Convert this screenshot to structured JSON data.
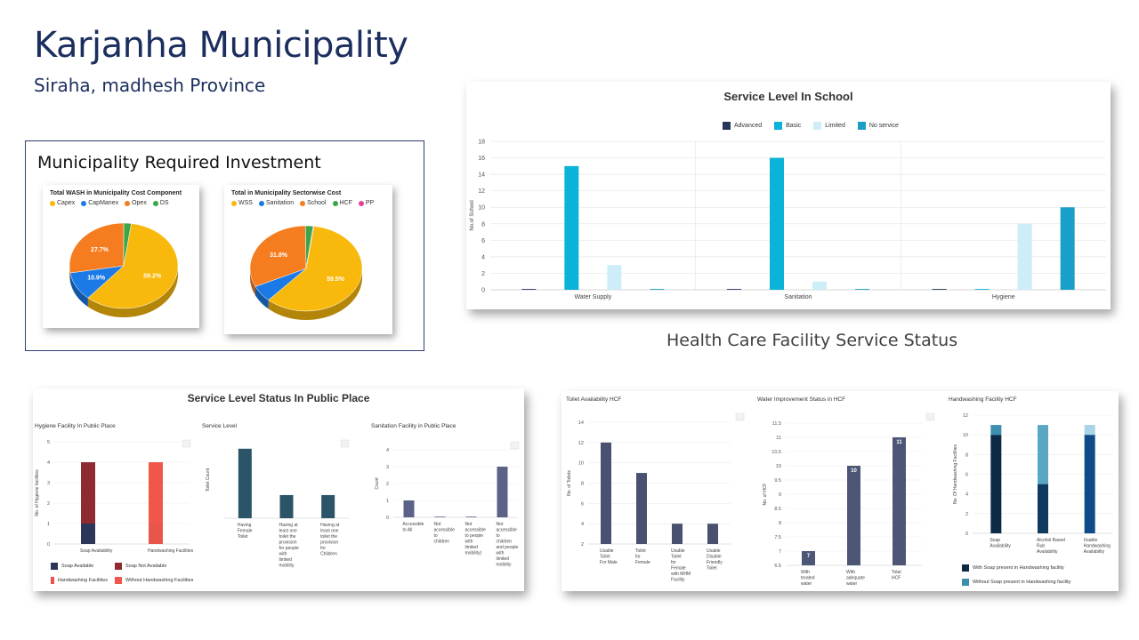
{
  "header": {
    "title": "Karjanha Municipality",
    "subtitle": "Siraha, madhesh Province"
  },
  "investment": {
    "heading": "Municipality Required Investment"
  },
  "hcf_heading": "Health Care Facility Service Status",
  "chart_data": [
    {
      "id": "pie-cost-component",
      "type": "pie",
      "title": "Total WASH in Municipality Cost Component",
      "labels": [
        "Capex",
        "CapManex",
        "Opex",
        "DS"
      ],
      "colors": [
        "#f8b90c",
        "#1b7ae6",
        "#f57c1f",
        "#3aa648"
      ],
      "values": [
        59.2,
        10.9,
        27.7,
        2.2
      ],
      "data_labels": [
        "59.2%",
        "10.9%",
        "27.7%",
        ""
      ]
    },
    {
      "id": "pie-sectorwise",
      "type": "pie",
      "title": "Total in Municipality Sectorwise Cost",
      "labels": [
        "WSS",
        "Sanitation",
        "School",
        "HCF",
        "PP"
      ],
      "colors": [
        "#f8b90c",
        "#1b7ae6",
        "#f57c1f",
        "#3aa648",
        "#e0449a"
      ],
      "values": [
        59.5,
        6.3,
        31.8,
        2.2,
        0.2
      ],
      "data_labels": [
        "59.5%",
        "",
        "31.8%",
        "",
        ""
      ]
    },
    {
      "id": "school-service",
      "type": "bar",
      "title": "Service Level In School",
      "categories": [
        "Water Supply",
        "Sanitation",
        "Hygiene"
      ],
      "series": [
        {
          "name": "Advanced",
          "color": "#263559",
          "values": [
            0,
            0,
            0
          ]
        },
        {
          "name": "Basic",
          "color": "#0bb3d9",
          "values": [
            15,
            16,
            0
          ]
        },
        {
          "name": "Limited",
          "color": "#cdeef8",
          "values": [
            3,
            1,
            8
          ]
        },
        {
          "name": "No service",
          "color": "#1aa0c8",
          "values": [
            0,
            0,
            10
          ]
        }
      ],
      "ylabel": "No.of School",
      "ylim": [
        0,
        18
      ],
      "yticks": [
        0,
        2,
        4,
        6,
        8,
        10,
        12,
        14,
        16,
        18
      ]
    },
    {
      "id": "pp-hygiene",
      "type": "bar",
      "group_title": "Service Level Status In Public Place",
      "title": "Hygiene Facility In Public Place",
      "categories": [
        "Soap Availability",
        "Handwashing Facilities"
      ],
      "series": [
        {
          "name": "Soap Available",
          "color": "#2d3559",
          "values": [
            1,
            0
          ]
        },
        {
          "name": "Soap Not Available",
          "color": "#8e2a30",
          "values": [
            3,
            0
          ]
        },
        {
          "name": "Handwashing Facilities",
          "color": "#e8554a",
          "values": [
            0,
            1
          ]
        },
        {
          "name": "Without Handwashing Facilities",
          "color": "#f0574a",
          "values": [
            0,
            3
          ]
        }
      ],
      "ylabel": "No. of Hygiene facilities",
      "ylim": [
        0,
        5
      ],
      "yticks": [
        0,
        1,
        2,
        3,
        4,
        5
      ]
    },
    {
      "id": "pp-service-level",
      "type": "bar",
      "title": "Service Level",
      "categories": [
        "Having Female Toilet",
        "Having at least one toilet the provision for people with limited mobility",
        "Having at least one toilet the provision for Children"
      ],
      "values": [
        3,
        1,
        1
      ],
      "color": "#2b5468",
      "ylabel": "Toilet Count"
    },
    {
      "id": "pp-sanitation",
      "type": "bar",
      "title": "Sanitation Facility in Public Place",
      "categories": [
        "Accessible to All",
        "Not accessible to children",
        "Not accessible to people with limited mobility)",
        "Not accessible to children and people with limited mobility"
      ],
      "values": [
        1,
        0,
        0,
        3
      ],
      "color": "#5a6287",
      "ylabel": "Count",
      "ylim": [
        0,
        4
      ],
      "yticks": [
        0,
        1,
        2,
        3,
        4
      ]
    },
    {
      "id": "hcf-toilet",
      "type": "bar",
      "title": "Toilet Availability HCF",
      "categories": [
        "Usable Toilet For Male",
        "Toilet for Female",
        "Usable Toilet for Female with MHM Facility",
        "Usable Disable Friendly Toilet"
      ],
      "values": [
        12,
        9,
        4,
        4
      ],
      "color": "#4a5170",
      "ylabel": "No. of Toilets",
      "ylim": [
        2,
        14
      ],
      "yticks": [
        2,
        4,
        6,
        8,
        10,
        12,
        14
      ]
    },
    {
      "id": "hcf-water",
      "type": "bar",
      "title": "Water Improvement Status in HCF",
      "categories": [
        "With treated water",
        "With adequate water",
        "Total HCF"
      ],
      "values": [
        7,
        10,
        11
      ],
      "data_labels": [
        "7",
        "10",
        "11"
      ],
      "color": "#4e5676",
      "ylabel": "No. of HCF",
      "ylim": [
        6.5,
        11.5
      ],
      "yticks": [
        6.5,
        7.0,
        7.5,
        8.0,
        8.5,
        9.0,
        9.5,
        10.0,
        10.5,
        11.0,
        11.5
      ]
    },
    {
      "id": "hcf-handwashing",
      "type": "bar",
      "title": "Handwashing Facility HCF",
      "categories": [
        "Soap Availability",
        "Alcohol Based Rub Availability",
        "Usable Handwashing Availability"
      ],
      "series": [
        {
          "name": "With Soap present in Handwashing facility",
          "colors": [
            "#0c2a45",
            "#0d3a5e",
            "#0f4b86"
          ],
          "values": [
            10,
            5,
            10
          ]
        },
        {
          "name": "Without Soap present in Handwashing facility",
          "colors": [
            "#3d8fb0",
            "#5aa7c5",
            "#a9d3e6"
          ],
          "values": [
            1,
            6,
            1
          ]
        }
      ],
      "ylabel": "No. Of Handwashing Facilities",
      "ylim": [
        0,
        12
      ],
      "yticks": [
        0,
        2,
        4,
        6,
        8,
        10,
        12
      ]
    }
  ]
}
